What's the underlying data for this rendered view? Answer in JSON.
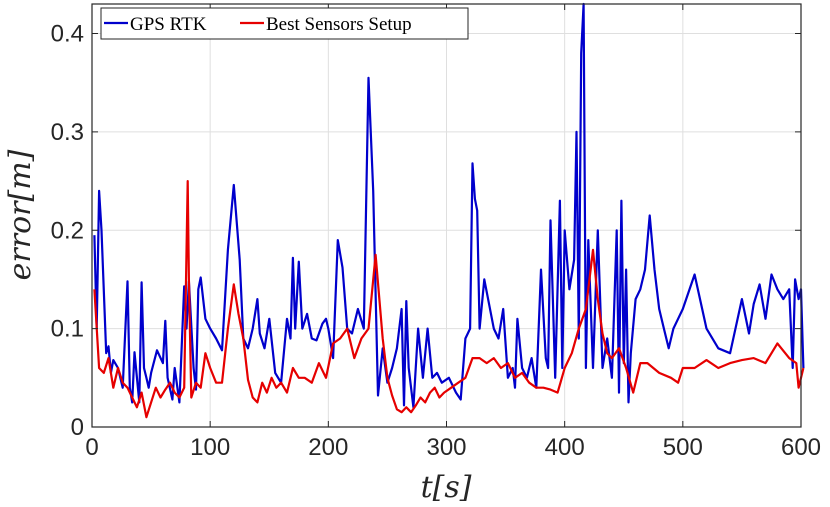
{
  "chart_data": {
    "type": "line",
    "title": "",
    "xlabel": "t[s]",
    "ylabel": "error[m]",
    "xlim": [
      0,
      600
    ],
    "ylim": [
      0,
      0.43
    ],
    "xticks": [
      0,
      100,
      200,
      300,
      400,
      500,
      600
    ],
    "yticks": [
      0,
      0.1,
      0.2,
      0.3,
      0.4
    ],
    "xtick_labels": [
      "0",
      "100",
      "200",
      "300",
      "400",
      "500",
      "600"
    ],
    "ytick_labels": [
      "0",
      "0.1",
      "0.2",
      "0.3",
      "0.4"
    ],
    "grid": true,
    "legend_position": "top-left",
    "series": [
      {
        "name": "GPS RTK",
        "color": "#0000cc",
        "x": [
          2,
          4,
          6,
          8,
          12,
          14,
          16,
          18,
          22,
          26,
          30,
          32,
          34,
          36,
          40,
          42,
          44,
          46,
          48,
          50,
          55,
          60,
          62,
          64,
          68,
          70,
          74,
          78,
          80,
          82,
          86,
          88,
          90,
          92,
          96,
          100,
          105,
          110,
          115,
          120,
          125,
          128,
          132,
          136,
          140,
          142,
          146,
          150,
          155,
          160,
          165,
          168,
          170,
          172,
          175,
          178,
          182,
          186,
          190,
          195,
          198,
          200,
          204,
          208,
          212,
          216,
          220,
          225,
          230,
          234,
          238,
          242,
          246,
          250,
          254,
          258,
          262,
          264,
          266,
          268,
          272,
          276,
          280,
          284,
          288,
          292,
          296,
          302,
          308,
          312,
          316,
          320,
          322,
          324,
          326,
          328,
          332,
          340,
          344,
          348,
          352,
          356,
          358,
          360,
          364,
          368,
          372,
          376,
          380,
          384,
          386,
          388,
          392,
          396,
          398,
          400,
          404,
          408,
          410,
          412,
          414,
          416,
          418,
          420,
          424,
          428,
          432,
          436,
          440,
          444,
          446,
          448,
          450,
          452,
          454,
          456,
          460,
          464,
          468,
          472,
          476,
          480,
          484,
          488,
          492,
          496,
          500,
          510,
          520,
          530,
          540,
          550,
          556,
          560,
          565,
          570,
          575,
          580,
          585,
          590,
          593,
          595,
          598,
          600,
          602
        ],
        "values": [
          0.195,
          0.1,
          0.24,
          0.2,
          0.075,
          0.082,
          0.055,
          0.068,
          0.06,
          0.04,
          0.148,
          0.04,
          0.025,
          0.076,
          0.025,
          0.147,
          0.06,
          0.05,
          0.04,
          0.055,
          0.078,
          0.065,
          0.108,
          0.05,
          0.028,
          0.06,
          0.025,
          0.143,
          0.1,
          0.148,
          0.06,
          0.038,
          0.14,
          0.152,
          0.11,
          0.1,
          0.09,
          0.078,
          0.18,
          0.246,
          0.17,
          0.09,
          0.08,
          0.1,
          0.13,
          0.095,
          0.08,
          0.11,
          0.055,
          0.045,
          0.11,
          0.09,
          0.172,
          0.1,
          0.168,
          0.1,
          0.115,
          0.09,
          0.088,
          0.105,
          0.11,
          0.1,
          0.07,
          0.19,
          0.162,
          0.1,
          0.095,
          0.12,
          0.1,
          0.355,
          0.24,
          0.032,
          0.08,
          0.045,
          0.06,
          0.08,
          0.12,
          0.022,
          0.128,
          0.06,
          0.02,
          0.1,
          0.05,
          0.1,
          0.05,
          0.055,
          0.045,
          0.05,
          0.035,
          0.028,
          0.09,
          0.1,
          0.268,
          0.232,
          0.22,
          0.1,
          0.15,
          0.1,
          0.09,
          0.12,
          0.05,
          0.06,
          0.04,
          0.11,
          0.06,
          0.05,
          0.07,
          0.04,
          0.16,
          0.07,
          0.06,
          0.21,
          0.05,
          0.23,
          0.06,
          0.2,
          0.14,
          0.17,
          0.3,
          0.09,
          0.38,
          0.43,
          0.06,
          0.19,
          0.06,
          0.2,
          0.06,
          0.09,
          0.05,
          0.2,
          0.035,
          0.23,
          0.065,
          0.16,
          0.025,
          0.075,
          0.13,
          0.14,
          0.16,
          0.215,
          0.16,
          0.12,
          0.1,
          0.08,
          0.1,
          0.11,
          0.12,
          0.155,
          0.1,
          0.08,
          0.075,
          0.13,
          0.095,
          0.125,
          0.145,
          0.11,
          0.155,
          0.14,
          0.13,
          0.14,
          0.06,
          0.15,
          0.13,
          0.14,
          0.06
        ]
      },
      {
        "name": "Best Sensors Setup",
        "color": "#e60000",
        "x": [
          2,
          6,
          10,
          14,
          18,
          22,
          26,
          30,
          34,
          38,
          42,
          46,
          50,
          54,
          58,
          62,
          66,
          70,
          74,
          78,
          81,
          82,
          84,
          88,
          92,
          96,
          100,
          105,
          110,
          115,
          120,
          124,
          128,
          132,
          136,
          140,
          144,
          148,
          152,
          156,
          160,
          165,
          170,
          175,
          180,
          186,
          192,
          198,
          204,
          210,
          216,
          222,
          228,
          234,
          240,
          246,
          250,
          254,
          258,
          262,
          266,
          270,
          274,
          278,
          282,
          286,
          290,
          294,
          298,
          304,
          310,
          316,
          322,
          328,
          334,
          340,
          346,
          352,
          358,
          364,
          370,
          376,
          382,
          388,
          394,
          400,
          406,
          412,
          418,
          424,
          428,
          432,
          436,
          440,
          446,
          452,
          458,
          464,
          470,
          480,
          490,
          496,
          500,
          510,
          520,
          530,
          540,
          550,
          560,
          570,
          580,
          590,
          596,
          598,
          602
        ],
        "values": [
          0.14,
          0.06,
          0.055,
          0.07,
          0.04,
          0.06,
          0.045,
          0.04,
          0.03,
          0.02,
          0.035,
          0.01,
          0.025,
          0.04,
          0.03,
          0.038,
          0.045,
          0.035,
          0.03,
          0.04,
          0.25,
          0.15,
          0.03,
          0.045,
          0.04,
          0.075,
          0.06,
          0.045,
          0.045,
          0.1,
          0.145,
          0.115,
          0.09,
          0.048,
          0.03,
          0.025,
          0.045,
          0.035,
          0.05,
          0.04,
          0.045,
          0.035,
          0.06,
          0.05,
          0.05,
          0.045,
          0.065,
          0.05,
          0.085,
          0.09,
          0.1,
          0.07,
          0.09,
          0.1,
          0.175,
          0.09,
          0.05,
          0.032,
          0.018,
          0.015,
          0.02,
          0.015,
          0.022,
          0.03,
          0.025,
          0.035,
          0.04,
          0.03,
          0.035,
          0.04,
          0.045,
          0.05,
          0.07,
          0.07,
          0.065,
          0.07,
          0.06,
          0.065,
          0.05,
          0.055,
          0.045,
          0.04,
          0.04,
          0.038,
          0.035,
          0.06,
          0.075,
          0.1,
          0.12,
          0.18,
          0.13,
          0.095,
          0.075,
          0.07,
          0.08,
          0.06,
          0.035,
          0.065,
          0.065,
          0.055,
          0.05,
          0.045,
          0.06,
          0.06,
          0.068,
          0.06,
          0.065,
          0.068,
          0.07,
          0.065,
          0.085,
          0.07,
          0.065,
          0.04,
          0.06
        ]
      }
    ]
  }
}
